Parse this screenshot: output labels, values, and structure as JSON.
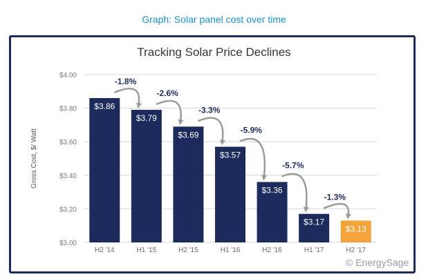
{
  "caption": "Graph: Solar panel cost over time",
  "watermark": "© EnergySage",
  "colors": {
    "bar": "#1d2b5c",
    "highlight": "#f2a33a",
    "frame": "#1d2b5c",
    "caption": "#1a8fc9",
    "change_label": "#1d2b5c",
    "arrow": "#9a9a9a",
    "grid": "#d6d6d6"
  },
  "chart_data": {
    "type": "bar",
    "title": "Tracking Solar Price Declines",
    "xlabel": "",
    "ylabel": "Gross Cost, $/ Watt",
    "ylim": [
      3.0,
      4.0
    ],
    "yticks": [
      "$3.00",
      "$3.20",
      "$3.40",
      "$3.60",
      "$3.80",
      "$4.00"
    ],
    "ytick_values": [
      3.0,
      3.2,
      3.4,
      3.6,
      3.8,
      4.0
    ],
    "grid": true,
    "categories": [
      "H2 '14",
      "H1 '15",
      "H2 '15",
      "H1 '16",
      "H2 '16",
      "H1 '17",
      "H2 '17"
    ],
    "values": [
      3.86,
      3.79,
      3.69,
      3.57,
      3.36,
      3.17,
      3.13
    ],
    "value_labels": [
      "$3.86",
      "$3.79",
      "$3.69",
      "$3.57",
      "$3.36",
      "$3.17",
      "$3.13"
    ],
    "changes": [
      "-1.8%",
      "-2.6%",
      "-3.3%",
      "-5.9%",
      "-5.7%",
      "-1.3%"
    ],
    "highlight_index": 6
  }
}
